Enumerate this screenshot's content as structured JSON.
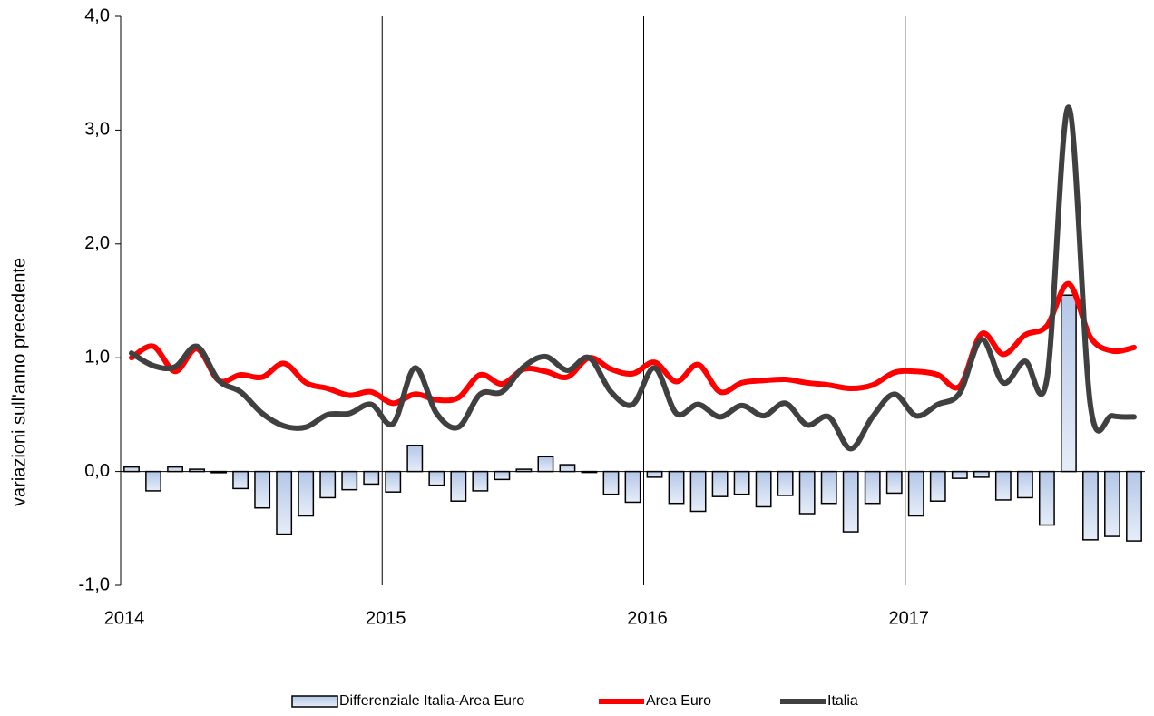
{
  "chart_data": {
    "type": "bar_line",
    "y_label": "variazioni sull'anno precedente",
    "categories": [
      "2014",
      null,
      null,
      null,
      null,
      null,
      null,
      null,
      null,
      null,
      null,
      null,
      "2015",
      null,
      null,
      null,
      null,
      null,
      null,
      null,
      null,
      null,
      null,
      null,
      "2016",
      null,
      null,
      null,
      null,
      null,
      null,
      null,
      null,
      null,
      null,
      null,
      "2017",
      null,
      null,
      null,
      null,
      null,
      null,
      null,
      null,
      null,
      null
    ],
    "series": [
      {
        "name": "Differenziale Italia-Area Euro",
        "kind": "bar",
        "color": "#b4c7e7",
        "values": [
          0.04,
          -0.17,
          0.04,
          0.02,
          -0.01,
          -0.15,
          -0.32,
          -0.55,
          -0.39,
          -0.23,
          -0.16,
          -0.11,
          -0.18,
          0.23,
          -0.12,
          -0.26,
          -0.17,
          -0.07,
          0.02,
          0.13,
          0.06,
          0.0,
          -0.2,
          -0.27,
          -0.05,
          -0.28,
          -0.35,
          -0.22,
          -0.2,
          -0.31,
          -0.21,
          -0.37,
          -0.28,
          -0.53,
          -0.28,
          -0.19,
          -0.39,
          -0.26,
          -0.06,
          -0.05,
          -0.25,
          -0.23,
          -0.47,
          1.55,
          -0.6,
          -0.57,
          -0.61
        ]
      },
      {
        "name": "Area Euro",
        "kind": "line",
        "color": "#ff0000",
        "values": [
          1.0,
          1.1,
          0.88,
          1.08,
          0.8,
          0.85,
          0.83,
          0.95,
          0.78,
          0.73,
          0.67,
          0.7,
          0.6,
          0.68,
          0.63,
          0.65,
          0.85,
          0.77,
          0.9,
          0.88,
          0.83,
          1.0,
          0.9,
          0.86,
          0.96,
          0.79,
          0.94,
          0.7,
          0.78,
          0.8,
          0.81,
          0.78,
          0.76,
          0.73,
          0.76,
          0.87,
          0.88,
          0.85,
          0.75,
          1.21,
          1.03,
          1.2,
          1.28,
          1.65,
          1.18,
          1.06,
          1.09
        ]
      },
      {
        "name": "Italia",
        "kind": "line",
        "color": "#404040",
        "values": [
          1.04,
          0.93,
          0.92,
          1.1,
          0.8,
          0.7,
          0.51,
          0.4,
          0.39,
          0.5,
          0.51,
          0.59,
          0.42,
          0.91,
          0.51,
          0.39,
          0.68,
          0.7,
          0.92,
          1.01,
          0.89,
          1.0,
          0.7,
          0.59,
          0.91,
          0.51,
          0.59,
          0.48,
          0.58,
          0.49,
          0.6,
          0.41,
          0.48,
          0.2,
          0.48,
          0.68,
          0.49,
          0.59,
          0.69,
          1.16,
          0.78,
          0.97,
          0.81,
          3.2,
          0.58,
          0.49,
          0.48
        ]
      }
    ],
    "ylim": [
      -1,
      4
    ],
    "yticks": [
      {
        "value": -1,
        "label": "-1,0"
      },
      {
        "value": 0,
        "label": "0,0"
      },
      {
        "value": 1,
        "label": "1,0"
      },
      {
        "value": 2,
        "label": "2,0"
      },
      {
        "value": 3,
        "label": "3,0"
      },
      {
        "value": 4,
        "label": "4,0"
      }
    ],
    "legend": "bottom"
  }
}
